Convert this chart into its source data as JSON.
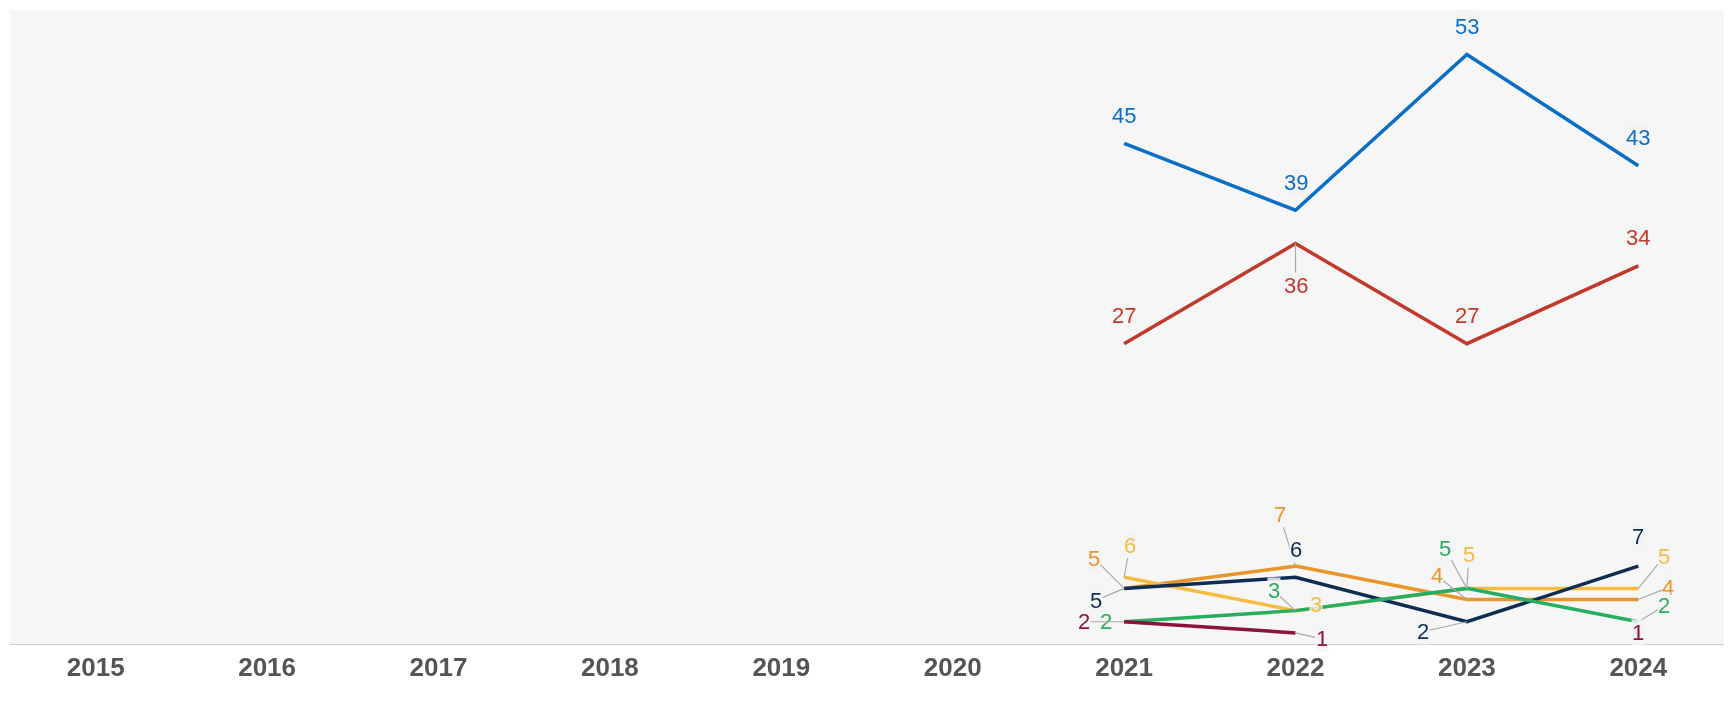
{
  "chart_data": {
    "type": "line",
    "categories": [
      "2015",
      "2016",
      "2017",
      "2018",
      "2019",
      "2020",
      "2021",
      "2022",
      "2023",
      "2024"
    ],
    "series": [
      {
        "color": "#0a6ec4",
        "values": [
          null,
          null,
          null,
          null,
          null,
          null,
          45,
          39,
          53,
          43
        ]
      },
      {
        "color": "#c0392b",
        "values": [
          null,
          null,
          null,
          null,
          null,
          null,
          27,
          36,
          27,
          34
        ]
      },
      {
        "color": "#e8952a",
        "values": [
          null,
          null,
          null,
          null,
          null,
          null,
          5,
          7,
          4,
          4
        ]
      },
      {
        "color": "#f5bc42",
        "values": [
          null,
          null,
          null,
          null,
          null,
          null,
          6,
          3,
          5,
          5
        ]
      },
      {
        "color": "#0d2d52",
        "values": [
          null,
          null,
          null,
          null,
          null,
          null,
          5,
          6,
          2,
          7
        ]
      },
      {
        "color": "#27ae60",
        "values": [
          null,
          null,
          null,
          null,
          null,
          null,
          2,
          3,
          5,
          2
        ]
      },
      {
        "color": "#8b1538",
        "values": [
          null,
          null,
          null,
          null,
          null,
          null,
          2,
          1,
          null,
          1
        ]
      }
    ],
    "ylim": [
      0,
      57
    ],
    "data_labels": true,
    "grid": false,
    "line_style": "solid",
    "tick_labels": "x"
  }
}
